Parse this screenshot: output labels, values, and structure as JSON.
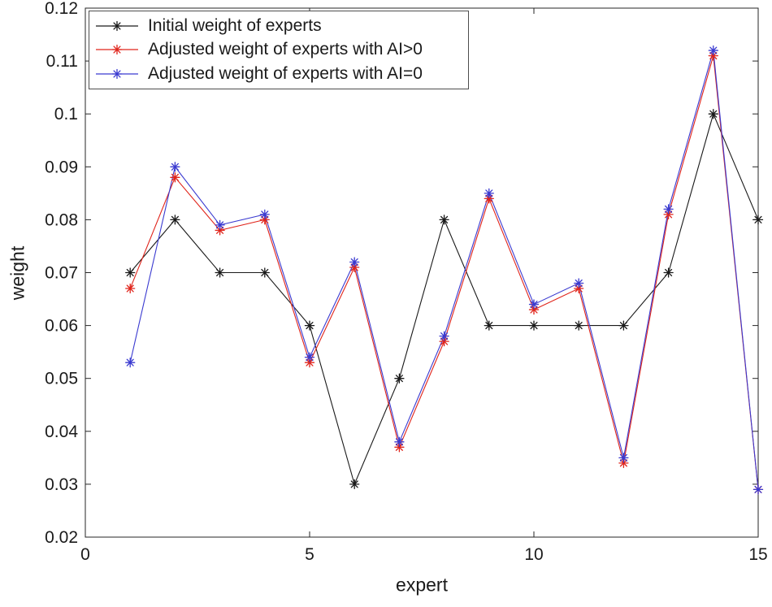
{
  "chart_data": {
    "type": "line",
    "title": "",
    "xlabel": "expert",
    "ylabel": "weight",
    "xlim": [
      0,
      15
    ],
    "ylim": [
      0.02,
      0.12
    ],
    "grid": false,
    "legend_position": "top-left",
    "marker": "asterisk",
    "axis_color": "#262626",
    "text_color": "#1a1a1a",
    "xticks": [
      {
        "v": 0,
        "label": "0"
      },
      {
        "v": 5,
        "label": "5"
      },
      {
        "v": 10,
        "label": "10"
      },
      {
        "v": 15,
        "label": "15"
      }
    ],
    "yticks": [
      {
        "v": 0.02,
        "label": "0.02"
      },
      {
        "v": 0.03,
        "label": "0.03"
      },
      {
        "v": 0.04,
        "label": "0.04"
      },
      {
        "v": 0.05,
        "label": "0.05"
      },
      {
        "v": 0.06,
        "label": "0.06"
      },
      {
        "v": 0.07,
        "label": "0.07"
      },
      {
        "v": 0.08,
        "label": "0.08"
      },
      {
        "v": 0.09,
        "label": "0.09"
      },
      {
        "v": 0.1,
        "label": "0.1"
      },
      {
        "v": 0.11,
        "label": "0.11"
      },
      {
        "v": 0.12,
        "label": "0.12"
      }
    ],
    "x": [
      1,
      2,
      3,
      4,
      5,
      6,
      7,
      8,
      9,
      10,
      11,
      12,
      13,
      14,
      15
    ],
    "series": [
      {
        "name": "Initial weight of experts",
        "color": "#1a1a1a",
        "values": [
          0.07,
          0.08,
          0.07,
          0.07,
          0.06,
          0.03,
          0.05,
          0.08,
          0.06,
          0.06,
          0.06,
          0.06,
          0.07,
          0.1,
          0.08
        ]
      },
      {
        "name": "Adjusted weight of experts with AI>0",
        "color": "#e0241b",
        "values": [
          0.067,
          0.088,
          0.078,
          0.08,
          0.053,
          0.071,
          0.037,
          0.057,
          0.084,
          0.063,
          0.067,
          0.034,
          0.081,
          0.111,
          0.029
        ]
      },
      {
        "name": "Adjusted weight of experts with AI=0",
        "color": "#3a3ad0",
        "values": [
          0.053,
          0.09,
          0.079,
          0.081,
          0.054,
          0.072,
          0.038,
          0.058,
          0.085,
          0.064,
          0.068,
          0.035,
          0.082,
          0.112,
          0.029
        ]
      }
    ]
  }
}
